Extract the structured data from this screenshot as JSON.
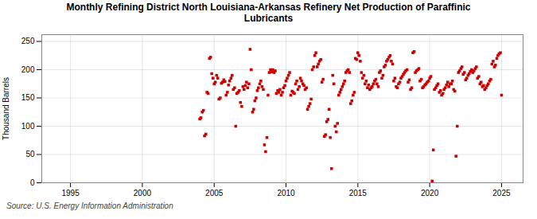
{
  "chart_data": {
    "type": "scatter",
    "title": "Monthly Refining District North Louisiana-Arkansas Refinery Net Production of Paraffinic\nLubricants",
    "ylabel": "Thousand Barrels",
    "source": "Source: U.S. Energy Information Administration",
    "color": "#cc0000",
    "marker": "square",
    "grid": true,
    "xlim": [
      1993.0,
      2026.5
    ],
    "ylim": [
      0,
      262
    ],
    "xticks": [
      1995,
      2000,
      2005,
      2010,
      2015,
      2020,
      2025
    ],
    "yticks": [
      0,
      50,
      100,
      150,
      200,
      250
    ],
    "x": [
      2004.0,
      2004.08,
      2004.17,
      2004.25,
      2004.33,
      2004.42,
      2004.5,
      2004.58,
      2004.67,
      2004.75,
      2004.83,
      2004.92,
      2005.0,
      2005.08,
      2005.17,
      2005.25,
      2005.33,
      2005.42,
      2005.5,
      2005.58,
      2005.67,
      2005.75,
      2005.83,
      2005.92,
      2006.0,
      2006.08,
      2006.17,
      2006.25,
      2006.33,
      2006.42,
      2006.5,
      2006.58,
      2006.67,
      2006.75,
      2006.83,
      2006.92,
      2007.0,
      2007.08,
      2007.17,
      2007.25,
      2007.33,
      2007.42,
      2007.5,
      2007.58,
      2007.67,
      2007.75,
      2007.83,
      2007.92,
      2008.0,
      2008.08,
      2008.17,
      2008.25,
      2008.33,
      2008.42,
      2008.5,
      2008.58,
      2008.67,
      2008.75,
      2008.83,
      2008.92,
      2009.0,
      2009.08,
      2009.17,
      2009.25,
      2009.33,
      2009.42,
      2009.5,
      2009.58,
      2009.67,
      2009.75,
      2009.83,
      2009.92,
      2010.0,
      2010.08,
      2010.17,
      2010.25,
      2010.33,
      2010.42,
      2010.5,
      2010.58,
      2010.67,
      2010.75,
      2010.83,
      2010.92,
      2011.0,
      2011.08,
      2011.17,
      2011.25,
      2011.33,
      2011.42,
      2011.5,
      2011.58,
      2011.67,
      2011.75,
      2011.83,
      2011.92,
      2012.0,
      2012.08,
      2012.17,
      2012.25,
      2012.33,
      2012.42,
      2012.5,
      2012.58,
      2012.67,
      2012.75,
      2012.83,
      2012.92,
      2013.0,
      2013.08,
      2013.17,
      2013.25,
      2013.33,
      2013.42,
      2013.5,
      2013.58,
      2013.67,
      2013.75,
      2013.83,
      2013.92,
      2014.0,
      2014.08,
      2014.17,
      2014.25,
      2014.33,
      2014.42,
      2014.5,
      2014.58,
      2014.67,
      2014.75,
      2014.83,
      2014.92,
      2015.0,
      2015.08,
      2015.17,
      2015.25,
      2015.33,
      2015.42,
      2015.5,
      2015.58,
      2015.67,
      2015.75,
      2015.83,
      2015.92,
      2016.0,
      2016.08,
      2016.17,
      2016.25,
      2016.33,
      2016.42,
      2016.5,
      2016.58,
      2016.67,
      2016.75,
      2016.83,
      2016.92,
      2017.0,
      2017.08,
      2017.17,
      2017.25,
      2017.33,
      2017.42,
      2017.5,
      2017.58,
      2017.67,
      2017.75,
      2017.83,
      2017.92,
      2018.0,
      2018.08,
      2018.17,
      2018.25,
      2018.33,
      2018.42,
      2018.5,
      2018.58,
      2018.67,
      2018.75,
      2018.83,
      2018.92,
      2019.0,
      2019.08,
      2019.17,
      2019.25,
      2019.33,
      2019.42,
      2019.5,
      2019.58,
      2019.67,
      2019.75,
      2019.83,
      2019.92,
      2020.0,
      2020.08,
      2020.17,
      2020.25,
      2020.33,
      2020.42,
      2020.5,
      2020.58,
      2020.67,
      2020.75,
      2020.83,
      2020.92,
      2021.0,
      2021.08,
      2021.17,
      2021.25,
      2021.33,
      2021.42,
      2021.5,
      2021.58,
      2021.67,
      2021.75,
      2021.83,
      2021.92,
      2022.0,
      2022.08,
      2022.17,
      2022.25,
      2022.33,
      2022.42,
      2022.5,
      2022.58,
      2022.67,
      2022.75,
      2022.83,
      2022.92,
      2023.0,
      2023.08,
      2023.17,
      2023.25,
      2023.33,
      2023.42,
      2023.5,
      2023.58,
      2023.67,
      2023.75,
      2023.83,
      2023.92,
      2024.0,
      2024.08,
      2024.17,
      2024.25,
      2024.33,
      2024.42,
      2024.5,
      2024.58,
      2024.67,
      2024.75,
      2024.83,
      2024.92,
      2025.0
    ],
    "values": [
      113,
      115,
      125,
      128,
      83,
      86,
      160,
      158,
      220,
      222,
      193,
      185,
      175,
      178,
      190,
      185,
      148,
      150,
      176,
      178,
      182,
      179,
      155,
      160,
      173,
      180,
      185,
      190,
      165,
      168,
      100,
      158,
      160,
      163,
      142,
      135,
      170,
      165,
      172,
      178,
      168,
      175,
      236,
      200,
      125,
      130,
      145,
      150,
      163,
      168,
      175,
      180,
      170,
      165,
      67,
      55,
      80,
      155,
      195,
      200,
      196,
      200,
      195,
      198,
      158,
      163,
      160,
      165,
      155,
      160,
      168,
      172,
      180,
      185,
      190,
      195,
      155,
      162,
      160,
      158,
      175,
      180,
      165,
      170,
      185,
      180,
      175,
      172,
      165,
      168,
      130,
      135,
      140,
      148,
      200,
      205,
      225,
      230,
      205,
      210,
      215,
      218,
      178,
      183,
      82,
      85,
      108,
      112,
      130,
      80,
      25,
      190,
      175,
      100,
      90,
      105,
      155,
      160,
      165,
      170,
      175,
      180,
      195,
      198,
      200,
      195,
      140,
      145,
      155,
      160,
      220,
      218,
      230,
      225,
      215,
      195,
      185,
      190,
      175,
      180,
      168,
      173,
      165,
      168,
      170,
      175,
      180,
      183,
      175,
      170,
      195,
      198,
      185,
      190,
      205,
      208,
      215,
      218,
      222,
      225,
      215,
      210,
      180,
      185,
      170,
      168,
      175,
      178,
      185,
      188,
      192,
      195,
      198,
      200,
      178,
      182,
      165,
      168,
      230,
      232,
      195,
      198,
      200,
      202,
      180,
      183,
      168,
      170,
      173,
      175,
      178,
      180,
      185,
      188,
      3,
      58,
      165,
      168,
      172,
      175,
      160,
      163,
      155,
      158,
      165,
      168,
      173,
      178,
      170,
      175,
      175,
      180,
      165,
      162,
      47,
      100,
      195,
      198,
      202,
      205,
      192,
      195,
      182,
      185,
      190,
      193,
      197,
      200,
      195,
      198,
      202,
      205,
      185,
      188,
      175,
      178,
      170,
      172,
      165,
      168,
      172,
      175,
      180,
      183,
      210,
      215,
      205,
      208,
      220,
      225,
      228,
      230,
      155
    ]
  }
}
